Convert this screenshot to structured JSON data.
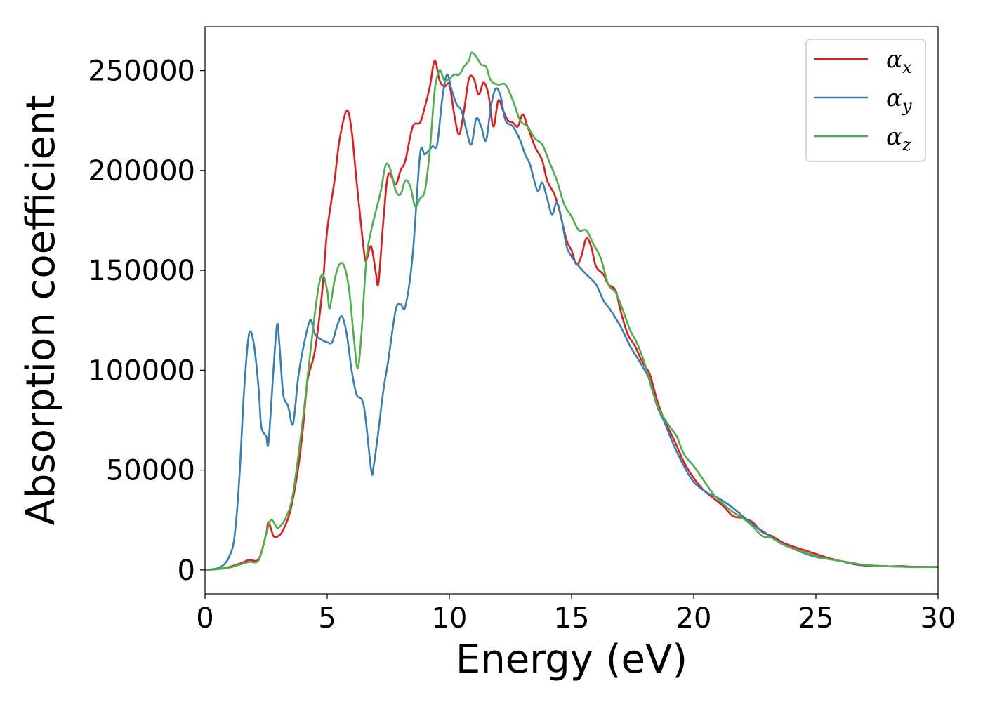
{
  "chart_data": {
    "type": "line",
    "title": "",
    "xlabel": "Energy (eV)",
    "ylabel": "Absorption coefficient",
    "xlim": [
      0,
      30
    ],
    "ylim": [
      -12000,
      272000
    ],
    "xticks": [
      0,
      5,
      10,
      15,
      20,
      25,
      30
    ],
    "xtick_labels": [
      "0",
      "5",
      "10",
      "15",
      "20",
      "25",
      "30"
    ],
    "yticks": [
      0,
      50000,
      100000,
      150000,
      200000,
      250000
    ],
    "ytick_labels": [
      "0",
      "50000",
      "100000",
      "150000",
      "200000",
      "250000"
    ],
    "grid": false,
    "legend_position": "top-right",
    "series": [
      {
        "name": "α_x",
        "legend_base": "α",
        "legend_sub": "x",
        "color": "#e41a1c",
        "points": [
          [
            0,
            0
          ],
          [
            0.5,
            400
          ],
          [
            1,
            1500
          ],
          [
            1.5,
            3500
          ],
          [
            1.8,
            5000
          ],
          [
            2.2,
            5500
          ],
          [
            2.5,
            18000
          ],
          [
            2.6,
            24000
          ],
          [
            2.8,
            17000
          ],
          [
            3.0,
            17000
          ],
          [
            3.2,
            20000
          ],
          [
            3.5,
            30000
          ],
          [
            3.8,
            50000
          ],
          [
            4.0,
            70000
          ],
          [
            4.2,
            95000
          ],
          [
            4.5,
            110000
          ],
          [
            4.8,
            140000
          ],
          [
            5.0,
            170000
          ],
          [
            5.3,
            195000
          ],
          [
            5.5,
            215000
          ],
          [
            5.8,
            230000
          ],
          [
            6.0,
            220000
          ],
          [
            6.2,
            195000
          ],
          [
            6.5,
            160000
          ],
          [
            6.6,
            155000
          ],
          [
            6.8,
            162000
          ],
          [
            7.0,
            148000
          ],
          [
            7.1,
            144000
          ],
          [
            7.3,
            175000
          ],
          [
            7.5,
            198000
          ],
          [
            7.8,
            193000
          ],
          [
            8.0,
            200000
          ],
          [
            8.2,
            205000
          ],
          [
            8.5,
            222000
          ],
          [
            8.8,
            224000
          ],
          [
            9.0,
            232000
          ],
          [
            9.2,
            242000
          ],
          [
            9.4,
            255000
          ],
          [
            9.6,
            245000
          ],
          [
            9.8,
            242000
          ],
          [
            10.0,
            243000
          ],
          [
            10.2,
            228000
          ],
          [
            10.4,
            218000
          ],
          [
            10.6,
            230000
          ],
          [
            10.8,
            246000
          ],
          [
            11.0,
            246000
          ],
          [
            11.2,
            238000
          ],
          [
            11.4,
            244000
          ],
          [
            11.6,
            238000
          ],
          [
            11.8,
            222000
          ],
          [
            12.0,
            235000
          ],
          [
            12.2,
            230000
          ],
          [
            12.4,
            225000
          ],
          [
            12.6,
            224000
          ],
          [
            12.8,
            222000
          ],
          [
            13.0,
            228000
          ],
          [
            13.2,
            222000
          ],
          [
            13.5,
            212000
          ],
          [
            13.8,
            205000
          ],
          [
            14.0,
            195000
          ],
          [
            14.3,
            188000
          ],
          [
            14.5,
            180000
          ],
          [
            14.8,
            165000
          ],
          [
            15.0,
            160000
          ],
          [
            15.2,
            153000
          ],
          [
            15.4,
            157000
          ],
          [
            15.6,
            166000
          ],
          [
            15.8,
            162000
          ],
          [
            16.0,
            152000
          ],
          [
            16.3,
            148000
          ],
          [
            16.5,
            143000
          ],
          [
            16.8,
            140000
          ],
          [
            17.0,
            130000
          ],
          [
            17.3,
            118000
          ],
          [
            17.6,
            112000
          ],
          [
            17.9,
            104000
          ],
          [
            18.2,
            98000
          ],
          [
            18.5,
            85000
          ],
          [
            18.8,
            75000
          ],
          [
            19.2,
            65000
          ],
          [
            19.6,
            54000
          ],
          [
            20.0,
            46000
          ],
          [
            20.4,
            40000
          ],
          [
            20.8,
            36000
          ],
          [
            21.2,
            32000
          ],
          [
            21.6,
            27000
          ],
          [
            22.0,
            26000
          ],
          [
            22.4,
            24000
          ],
          [
            22.8,
            19000
          ],
          [
            23.2,
            17000
          ],
          [
            23.6,
            14000
          ],
          [
            24.0,
            12000
          ],
          [
            24.5,
            10000
          ],
          [
            25.0,
            8000
          ],
          [
            25.5,
            6000
          ],
          [
            26.0,
            4500
          ],
          [
            26.5,
            3000
          ],
          [
            27.0,
            2200
          ],
          [
            27.5,
            2000
          ],
          [
            28.0,
            1800
          ],
          [
            28.5,
            1900
          ],
          [
            29.0,
            1600
          ],
          [
            30.0,
            1500
          ]
        ]
      },
      {
        "name": "α_y",
        "legend_base": "α",
        "legend_sub": "y",
        "color": "#377eb8",
        "points": [
          [
            0,
            0
          ],
          [
            0.5,
            800
          ],
          [
            0.8,
            3000
          ],
          [
            1.0,
            7000
          ],
          [
            1.2,
            16000
          ],
          [
            1.4,
            45000
          ],
          [
            1.6,
            90000
          ],
          [
            1.8,
            118000
          ],
          [
            2.0,
            113000
          ],
          [
            2.2,
            90000
          ],
          [
            2.3,
            72000
          ],
          [
            2.5,
            67000
          ],
          [
            2.6,
            64000
          ],
          [
            2.8,
            100000
          ],
          [
            2.95,
            123000
          ],
          [
            3.05,
            112000
          ],
          [
            3.2,
            88000
          ],
          [
            3.4,
            82000
          ],
          [
            3.6,
            73000
          ],
          [
            3.8,
            95000
          ],
          [
            4.0,
            110000
          ],
          [
            4.3,
            125000
          ],
          [
            4.5,
            118000
          ],
          [
            4.8,
            115000
          ],
          [
            5.0,
            114000
          ],
          [
            5.2,
            114000
          ],
          [
            5.4,
            122000
          ],
          [
            5.6,
            127000
          ],
          [
            5.8,
            118000
          ],
          [
            6.0,
            100000
          ],
          [
            6.2,
            88000
          ],
          [
            6.5,
            82000
          ],
          [
            6.8,
            50000
          ],
          [
            6.9,
            52000
          ],
          [
            7.1,
            70000
          ],
          [
            7.3,
            90000
          ],
          [
            7.5,
            105000
          ],
          [
            7.8,
            130000
          ],
          [
            8.0,
            133000
          ],
          [
            8.2,
            132000
          ],
          [
            8.5,
            158000
          ],
          [
            8.8,
            208000
          ],
          [
            9.0,
            208000
          ],
          [
            9.3,
            212000
          ],
          [
            9.5,
            213000
          ],
          [
            9.7,
            235000
          ],
          [
            9.9,
            248000
          ],
          [
            10.1,
            240000
          ],
          [
            10.3,
            233000
          ],
          [
            10.5,
            230000
          ],
          [
            10.7,
            220000
          ],
          [
            10.9,
            213000
          ],
          [
            11.1,
            226000
          ],
          [
            11.3,
            222000
          ],
          [
            11.5,
            215000
          ],
          [
            11.7,
            232000
          ],
          [
            11.9,
            241000
          ],
          [
            12.1,
            237000
          ],
          [
            12.3,
            225000
          ],
          [
            12.6,
            222000
          ],
          [
            12.9,
            215000
          ],
          [
            13.1,
            208000
          ],
          [
            13.3,
            203000
          ],
          [
            13.6,
            190000
          ],
          [
            13.8,
            194000
          ],
          [
            14.0,
            186000
          ],
          [
            14.2,
            178000
          ],
          [
            14.4,
            184000
          ],
          [
            14.6,
            175000
          ],
          [
            14.8,
            162000
          ],
          [
            15.0,
            157000
          ],
          [
            15.3,
            152000
          ],
          [
            15.6,
            148000
          ],
          [
            16.0,
            143000
          ],
          [
            16.3,
            135000
          ],
          [
            16.6,
            130000
          ],
          [
            17.0,
            122000
          ],
          [
            17.4,
            112000
          ],
          [
            17.8,
            104000
          ],
          [
            18.2,
            95000
          ],
          [
            18.5,
            82000
          ],
          [
            18.8,
            74000
          ],
          [
            19.2,
            62000
          ],
          [
            19.6,
            52000
          ],
          [
            20.0,
            44000
          ],
          [
            20.5,
            39000
          ],
          [
            21.0,
            36000
          ],
          [
            21.5,
            32000
          ],
          [
            22.0,
            27000
          ],
          [
            22.5,
            22000
          ],
          [
            23.0,
            18000
          ],
          [
            23.5,
            14000
          ],
          [
            24.0,
            11000
          ],
          [
            24.5,
            8500
          ],
          [
            25.0,
            6500
          ],
          [
            25.5,
            5500
          ],
          [
            26.0,
            4500
          ],
          [
            26.5,
            3200
          ],
          [
            27.0,
            2500
          ],
          [
            28.0,
            1800
          ],
          [
            29.0,
            1500
          ],
          [
            30.0,
            1500
          ]
        ]
      },
      {
        "name": "α_z",
        "legend_base": "α",
        "legend_sub": "z",
        "color": "#4daf4a",
        "points": [
          [
            0,
            0
          ],
          [
            0.5,
            400
          ],
          [
            1,
            1200
          ],
          [
            1.5,
            3000
          ],
          [
            1.8,
            4000
          ],
          [
            2.2,
            5000
          ],
          [
            2.5,
            18000
          ],
          [
            2.7,
            25000
          ],
          [
            2.9,
            22000
          ],
          [
            3.0,
            21000
          ],
          [
            3.3,
            26000
          ],
          [
            3.6,
            38000
          ],
          [
            4.0,
            75000
          ],
          [
            4.3,
            108000
          ],
          [
            4.6,
            138000
          ],
          [
            4.8,
            148000
          ],
          [
            5.0,
            140000
          ],
          [
            5.1,
            131000
          ],
          [
            5.3,
            145000
          ],
          [
            5.5,
            153000
          ],
          [
            5.7,
            152000
          ],
          [
            5.9,
            140000
          ],
          [
            6.1,
            115000
          ],
          [
            6.25,
            101000
          ],
          [
            6.4,
            118000
          ],
          [
            6.6,
            155000
          ],
          [
            6.8,
            170000
          ],
          [
            7.0,
            180000
          ],
          [
            7.2,
            190000
          ],
          [
            7.4,
            203000
          ],
          [
            7.6,
            200000
          ],
          [
            7.8,
            190000
          ],
          [
            8.0,
            188000
          ],
          [
            8.2,
            195000
          ],
          [
            8.4,
            192000
          ],
          [
            8.6,
            182000
          ],
          [
            8.8,
            186000
          ],
          [
            9.0,
            190000
          ],
          [
            9.2,
            210000
          ],
          [
            9.4,
            240000
          ],
          [
            9.6,
            250000
          ],
          [
            9.8,
            245000
          ],
          [
            10.0,
            246000
          ],
          [
            10.2,
            248000
          ],
          [
            10.4,
            248000
          ],
          [
            10.6,
            252000
          ],
          [
            10.8,
            255000
          ],
          [
            10.9,
            259000
          ],
          [
            11.1,
            257000
          ],
          [
            11.3,
            253000
          ],
          [
            11.5,
            252000
          ],
          [
            11.7,
            245000
          ],
          [
            12.0,
            243000
          ],
          [
            12.3,
            243000
          ],
          [
            12.6,
            235000
          ],
          [
            12.9,
            225000
          ],
          [
            13.2,
            222000
          ],
          [
            13.5,
            216000
          ],
          [
            13.8,
            213000
          ],
          [
            14.1,
            204000
          ],
          [
            14.4,
            195000
          ],
          [
            14.7,
            183000
          ],
          [
            15.0,
            177000
          ],
          [
            15.3,
            170000
          ],
          [
            15.6,
            170000
          ],
          [
            15.9,
            163000
          ],
          [
            16.2,
            156000
          ],
          [
            16.5,
            143000
          ],
          [
            16.8,
            139000
          ],
          [
            17.1,
            130000
          ],
          [
            17.4,
            120000
          ],
          [
            17.7,
            113000
          ],
          [
            18.0,
            103000
          ],
          [
            18.3,
            90000
          ],
          [
            18.6,
            80000
          ],
          [
            19.0,
            72000
          ],
          [
            19.3,
            67000
          ],
          [
            19.6,
            58000
          ],
          [
            20.0,
            52000
          ],
          [
            20.4,
            45000
          ],
          [
            20.8,
            38000
          ],
          [
            21.2,
            33000
          ],
          [
            21.6,
            29000
          ],
          [
            22.0,
            26000
          ],
          [
            22.4,
            22000
          ],
          [
            22.8,
            17000
          ],
          [
            23.2,
            16000
          ],
          [
            23.6,
            13000
          ],
          [
            24.0,
            11000
          ],
          [
            24.5,
            9000
          ],
          [
            25.0,
            7000
          ],
          [
            25.5,
            5500
          ],
          [
            26.0,
            4500
          ],
          [
            26.5,
            3500
          ],
          [
            27.0,
            2500
          ],
          [
            28.0,
            1800
          ],
          [
            29.0,
            1500
          ],
          [
            30.0,
            1500
          ]
        ]
      }
    ]
  }
}
